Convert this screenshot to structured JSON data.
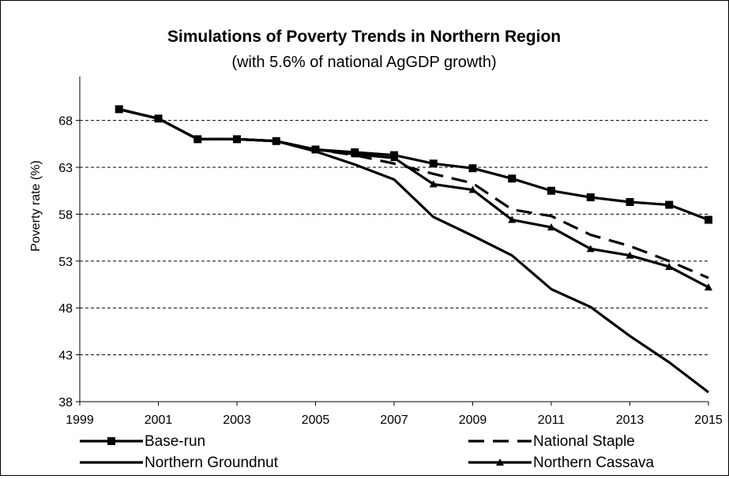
{
  "chart_data": {
    "type": "line",
    "title": "Simulations of Poverty Trends in Northern Region",
    "subtitle": "(with 5.6% of national AgGDP growth)",
    "xlabel": "",
    "ylabel": "Poverty rate (%)",
    "xlim": [
      1999,
      2015
    ],
    "ylim": [
      38,
      71
    ],
    "x_ticks": [
      "1999",
      "2001",
      "2003",
      "2005",
      "2007",
      "2009",
      "2011",
      "2013",
      "2015"
    ],
    "y_ticks": [
      "38",
      "43",
      "48",
      "53",
      "58",
      "63",
      "68"
    ],
    "grid": "horizontal dashed",
    "legend_position": "bottom",
    "x": [
      2000,
      2001,
      2002,
      2003,
      2004,
      2005,
      2006,
      2007,
      2008,
      2009,
      2010,
      2011,
      2012,
      2013,
      2014,
      2015
    ],
    "series": [
      {
        "name": "Base-run",
        "style": "solid-square",
        "values": [
          69.2,
          68.2,
          66.0,
          66.0,
          65.8,
          64.9,
          64.6,
          64.3,
          63.4,
          62.9,
          61.8,
          60.5,
          59.8,
          59.3,
          59.0,
          57.4
        ]
      },
      {
        "name": "National Staple",
        "style": "dashed",
        "values": [
          69.2,
          68.2,
          66.0,
          66.0,
          65.8,
          64.9,
          64.3,
          63.4,
          62.3,
          61.3,
          58.5,
          57.8,
          55.8,
          54.6,
          53.0,
          51.2
        ]
      },
      {
        "name": "Northern Groundnut",
        "style": "solid",
        "values": [
          69.2,
          68.2,
          66.0,
          66.0,
          65.8,
          64.7,
          63.3,
          61.7,
          57.7,
          55.7,
          53.6,
          50.0,
          48.1,
          45.0,
          42.2,
          39.0
        ]
      },
      {
        "name": "Northern Cassava",
        "style": "solid-triangle",
        "values": [
          69.2,
          68.2,
          66.0,
          66.0,
          65.8,
          64.9,
          64.4,
          64.0,
          61.2,
          60.6,
          57.4,
          56.6,
          54.3,
          53.6,
          52.4,
          50.2
        ]
      }
    ]
  }
}
